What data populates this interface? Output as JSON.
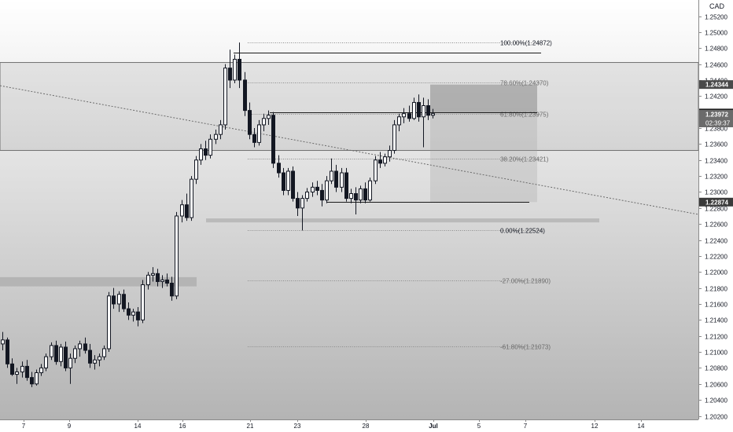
{
  "chart_data": {
    "type": "candlestick",
    "currency": "CAD",
    "y_ticks": [
      1.252,
      1.25,
      1.248,
      1.246,
      1.244,
      1.242,
      1.24,
      1.238,
      1.236,
      1.234,
      1.232,
      1.23,
      1.228,
      1.226,
      1.224,
      1.222,
      1.22,
      1.218,
      1.216,
      1.214,
      1.212,
      1.21,
      1.208,
      1.206,
      1.204,
      1.202
    ],
    "y_tick_labels": [
      "1.25200",
      "1.25000",
      "1.24800",
      "1.24600",
      "1.24400",
      "1.24200",
      "1.24000",
      "1.23800",
      "1.23600",
      "1.23400",
      "1.23200",
      "1.23000",
      "1.22800",
      "1.22600",
      "1.22400",
      "1.22200",
      "1.22000",
      "1.21800",
      "1.21600",
      "1.21400",
      "1.21200",
      "1.21000",
      "1.20800",
      "1.20600",
      "1.20400",
      "1.20200"
    ],
    "x_tick_labels": [
      "7",
      "9",
      "14",
      "16",
      "21",
      "23",
      "28",
      "Jul",
      "5",
      "7",
      "12",
      "14"
    ],
    "price_badges": [
      {
        "label": "1.24344",
        "value": 1.24344,
        "color": "#4a4a4a",
        "text_color": "#ffffff"
      },
      {
        "label": "1.23988",
        "value": 1.23988,
        "color": "#1f1f1f",
        "text_color": "#ffffff"
      },
      {
        "label": "1.23972",
        "value": 1.23972,
        "time": "02:39:37",
        "color": "#6b6b6b",
        "text_color": "#ffffff"
      },
      {
        "label": "1.22874",
        "value": 1.22874,
        "color": "#3a3a3a",
        "text_color": "#ffffff"
      }
    ],
    "fib_levels": [
      {
        "label": "100.00%(1.24872)",
        "value": 1.24872,
        "bold": true
      },
      {
        "label": "78.60%(1.24370)",
        "value": 1.2437,
        "bold": false
      },
      {
        "label": "61.80%(1.23975)",
        "value": 1.23975,
        "bold": false
      },
      {
        "label": "38.20%(1.23421)",
        "value": 1.23421,
        "bold": false
      },
      {
        "label": "0.00%(1.22524)",
        "value": 1.22524,
        "bold": true
      },
      {
        "label": "-27.00%(1.21890)",
        "value": 1.2189,
        "bold": false
      },
      {
        "label": "-61.80%(1.21073)",
        "value": 1.21073,
        "bold": false
      }
    ],
    "horizontal_lines": [
      1.2474,
      1.24,
      1.22874
    ],
    "zones": [
      {
        "top": 1.2462,
        "bottom": 1.2352
      },
      {
        "top": 1.21935,
        "bottom": 1.2182
      },
      {
        "top": 1.2267,
        "bottom": 1.2262
      }
    ],
    "position_box": {
      "top": 1.24344,
      "entry": 1.23988,
      "bottom": 1.22874
    },
    "trendline": {
      "start": 1.2433,
      "end": 1.2272
    },
    "candles": [
      [
        1.211,
        1.2125,
        1.2102,
        1.2115
      ],
      [
        1.2115,
        1.2118,
        1.208,
        1.2085
      ],
      [
        1.2085,
        1.2092,
        1.207,
        1.2072
      ],
      [
        1.2072,
        1.208,
        1.206,
        1.2075
      ],
      [
        1.2075,
        1.2088,
        1.2068,
        1.2082
      ],
      [
        1.2082,
        1.209,
        1.2064,
        1.2068
      ],
      [
        1.2068,
        1.2075,
        1.2056,
        1.206
      ],
      [
        1.206,
        1.2078,
        1.2058,
        1.2074
      ],
      [
        1.2074,
        1.2085,
        1.207,
        1.208
      ],
      [
        1.208,
        1.2098,
        1.2076,
        1.2094
      ],
      [
        1.2094,
        1.2112,
        1.209,
        1.2108
      ],
      [
        1.2108,
        1.2114,
        1.2084,
        1.2088
      ],
      [
        1.2088,
        1.211,
        1.2082,
        1.2106
      ],
      [
        1.2106,
        1.2113,
        1.2076,
        1.208
      ],
      [
        1.208,
        1.2098,
        1.206,
        1.2092
      ],
      [
        1.2092,
        1.2108,
        1.2086,
        1.2104
      ],
      [
        1.2104,
        1.2114,
        1.2094,
        1.211
      ],
      [
        1.211,
        1.2118,
        1.2098,
        1.2102
      ],
      [
        1.2102,
        1.211,
        1.208,
        1.2086
      ],
      [
        1.2086,
        1.2096,
        1.2078,
        1.209
      ],
      [
        1.209,
        1.2098,
        1.2082,
        1.2094
      ],
      [
        1.2094,
        1.2108,
        1.209,
        1.2104
      ],
      [
        1.2104,
        1.2175,
        1.21,
        1.217
      ],
      [
        1.217,
        1.218,
        1.2154,
        1.216
      ],
      [
        1.216,
        1.2176,
        1.215,
        1.2172
      ],
      [
        1.2172,
        1.2178,
        1.215,
        1.2154
      ],
      [
        1.2154,
        1.2162,
        1.214,
        1.2146
      ],
      [
        1.2146,
        1.2154,
        1.2138,
        1.215
      ],
      [
        1.215,
        1.2156,
        1.2132,
        1.214
      ],
      [
        1.214,
        1.219,
        1.2136,
        1.2184
      ],
      [
        1.2184,
        1.22,
        1.2178,
        1.2196
      ],
      [
        1.2196,
        1.2206,
        1.2188,
        1.2198
      ],
      [
        1.2198,
        1.2204,
        1.2182,
        1.2188
      ],
      [
        1.2188,
        1.2196,
        1.218,
        1.219
      ],
      [
        1.219,
        1.2198,
        1.2182,
        1.2186
      ],
      [
        1.2186,
        1.2194,
        1.2164,
        1.217
      ],
      [
        1.217,
        1.2275,
        1.2166,
        1.227
      ],
      [
        1.227,
        1.229,
        1.2262,
        1.2284
      ],
      [
        1.2284,
        1.2298,
        1.2264,
        1.2268
      ],
      [
        1.2268,
        1.232,
        1.2264,
        1.2316
      ],
      [
        1.2316,
        1.2345,
        1.231,
        1.234
      ],
      [
        1.234,
        1.236,
        1.2334,
        1.2354
      ],
      [
        1.2354,
        1.2364,
        1.234,
        1.2346
      ],
      [
        1.2346,
        1.2372,
        1.2342,
        1.2366
      ],
      [
        1.2366,
        1.2378,
        1.236,
        1.2372
      ],
      [
        1.2372,
        1.239,
        1.2366,
        1.2384
      ],
      [
        1.2384,
        1.246,
        1.2378,
        1.2455
      ],
      [
        1.2455,
        1.2478,
        1.243,
        1.244
      ],
      [
        1.244,
        1.2472,
        1.2436,
        1.2466
      ],
      [
        1.2466,
        1.2487,
        1.243,
        1.244
      ],
      [
        1.244,
        1.245,
        1.2395,
        1.2402
      ],
      [
        1.2402,
        1.2412,
        1.2366,
        1.2372
      ],
      [
        1.2372,
        1.238,
        1.2356,
        1.2362
      ],
      [
        1.2362,
        1.239,
        1.2358,
        1.2384
      ],
      [
        1.2384,
        1.2398,
        1.2376,
        1.2392
      ],
      [
        1.2392,
        1.2402,
        1.2384,
        1.2396
      ],
      [
        1.2396,
        1.24,
        1.233,
        1.2336
      ],
      [
        1.2336,
        1.2346,
        1.2318,
        1.2324
      ],
      [
        1.2324,
        1.233,
        1.2296,
        1.2302
      ],
      [
        1.2302,
        1.233,
        1.2296,
        1.2326
      ],
      [
        1.2326,
        1.2332,
        1.2288,
        1.2292
      ],
      [
        1.2292,
        1.23,
        1.227,
        1.228
      ],
      [
        1.228,
        1.2296,
        1.2252,
        1.2292
      ],
      [
        1.2292,
        1.2305,
        1.2288,
        1.23
      ],
      [
        1.23,
        1.2312,
        1.2294,
        1.2306
      ],
      [
        1.2306,
        1.2314,
        1.2296,
        1.2302
      ],
      [
        1.2302,
        1.231,
        1.2282,
        1.229
      ],
      [
        1.229,
        1.232,
        1.2286,
        1.2314
      ],
      [
        1.2314,
        1.2342,
        1.231,
        1.2326
      ],
      [
        1.2326,
        1.2334,
        1.23,
        1.2306
      ],
      [
        1.2306,
        1.233,
        1.23,
        1.2324
      ],
      [
        1.2324,
        1.233,
        1.2288,
        1.2292
      ],
      [
        1.2292,
        1.2304,
        1.2286,
        1.2298
      ],
      [
        1.2298,
        1.2306,
        1.2272,
        1.229
      ],
      [
        1.229,
        1.2308,
        1.2286,
        1.2304
      ],
      [
        1.2304,
        1.2312,
        1.2286,
        1.229
      ],
      [
        1.229,
        1.2318,
        1.2288,
        1.2314
      ],
      [
        1.2314,
        1.2345,
        1.231,
        1.234
      ],
      [
        1.234,
        1.235,
        1.233,
        1.2336
      ],
      [
        1.2336,
        1.2348,
        1.2332,
        1.2344
      ],
      [
        1.2344,
        1.2358,
        1.2338,
        1.2352
      ],
      [
        1.2352,
        1.239,
        1.2348,
        1.2384
      ],
      [
        1.2384,
        1.2398,
        1.2376,
        1.2394
      ],
      [
        1.2394,
        1.2405,
        1.2386,
        1.2398
      ],
      [
        1.2398,
        1.2408,
        1.2388,
        1.2392
      ],
      [
        1.2392,
        1.2418,
        1.239,
        1.2412
      ],
      [
        1.2412,
        1.2422,
        1.2388,
        1.2394
      ],
      [
        1.2394,
        1.2418,
        1.2356,
        1.2408
      ],
      [
        1.2408,
        1.2416,
        1.239,
        1.2396
      ],
      [
        1.2396,
        1.2404,
        1.2392,
        1.2398
      ]
    ]
  }
}
